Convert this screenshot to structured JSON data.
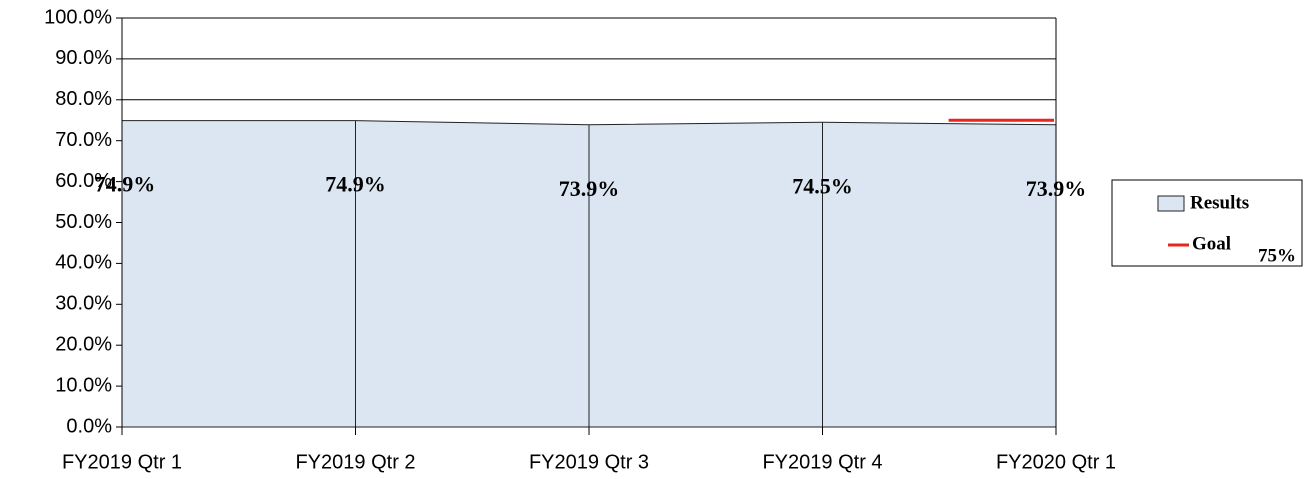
{
  "chart_data": {
    "type": "area",
    "categories": [
      "FY2019 Qtr 1",
      "FY2019 Qtr 2",
      "FY2019 Qtr 3",
      "FY2019 Qtr 4",
      "FY2020 Qtr 1"
    ],
    "series": [
      {
        "name": "Results",
        "color": "#dce6f2",
        "values": [
          74.9,
          74.9,
          73.9,
          74.5,
          73.9
        ],
        "value_labels": [
          "74.9%",
          "74.9%",
          "73.9%",
          "74.5%",
          "73.9%"
        ]
      }
    ],
    "goal": {
      "name": "Goal",
      "value": 75,
      "label": "75%",
      "color": "#e8251f"
    },
    "ylim": [
      0,
      100
    ],
    "yticks": [
      {
        "value": 0,
        "label": "0.0%"
      },
      {
        "value": 10,
        "label": "10.0%"
      },
      {
        "value": 20,
        "label": "20.0%"
      },
      {
        "value": 30,
        "label": "30.0%"
      },
      {
        "value": 40,
        "label": "40.0%"
      },
      {
        "value": 50,
        "label": "50.0%"
      },
      {
        "value": 60,
        "label": "60.0%"
      },
      {
        "value": 70,
        "label": "70.0%"
      },
      {
        "value": 80,
        "label": "80.0%"
      },
      {
        "value": 90,
        "label": "90.0%"
      },
      {
        "value": 100,
        "label": "100.0%"
      }
    ],
    "grid": true,
    "legend": "right"
  }
}
